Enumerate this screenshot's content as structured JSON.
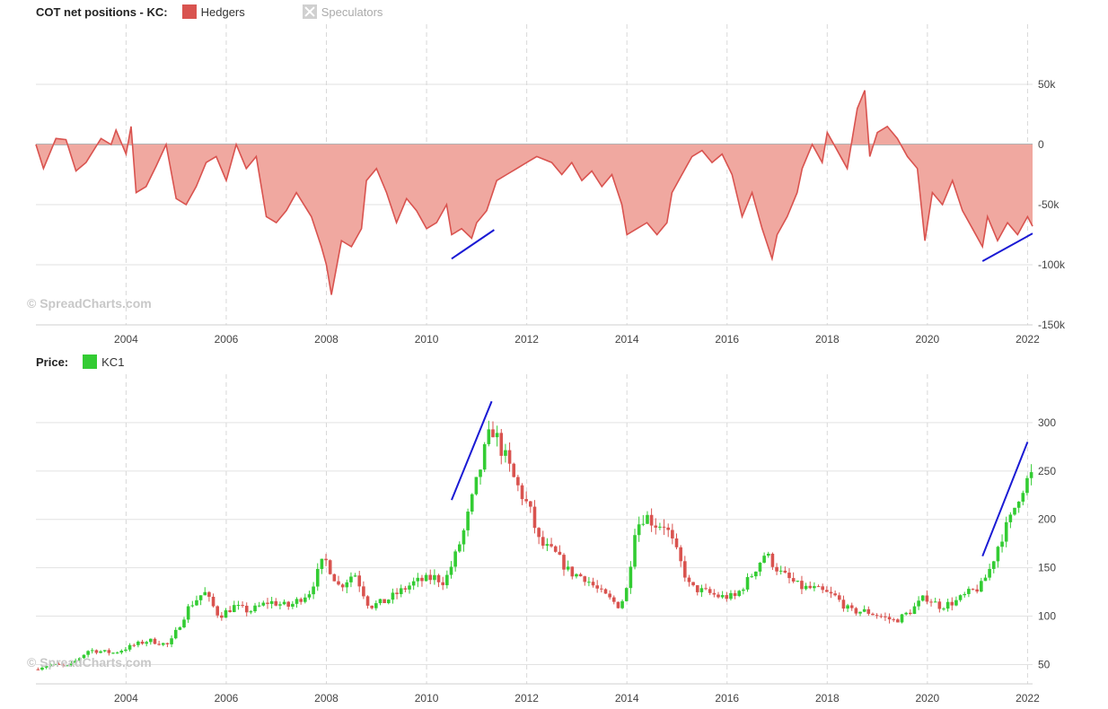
{
  "cot_panel": {
    "title": "COT net positions - KC:",
    "legend": [
      {
        "name": "Hedgers",
        "color": "#d9534f",
        "enabled": true
      },
      {
        "name": "Speculators",
        "color": "#cccccc",
        "enabled": false
      }
    ],
    "watermark": "© SpreadCharts.com"
  },
  "price_panel": {
    "title": "Price:",
    "legend": [
      {
        "name": "KC1",
        "color": "#33cc33",
        "enabled": true
      }
    ],
    "watermark": "© SpreadCharts.com"
  },
  "chart_data": [
    {
      "type": "area",
      "title": "COT net positions - KC:",
      "xlim": [
        2002.2,
        2022.1
      ],
      "ylim": [
        -150000,
        100000
      ],
      "x_ticks": [
        "2004",
        "2006",
        "2008",
        "2010",
        "2012",
        "2014",
        "2016",
        "2018",
        "2020",
        "2022"
      ],
      "y_ticks": [
        {
          "value": 50000,
          "label": "50k"
        },
        {
          "value": 0,
          "label": "0"
        },
        {
          "value": -50000,
          "label": "-50k"
        },
        {
          "value": -100000,
          "label": "-100k"
        },
        {
          "value": -150000,
          "label": "-150k"
        }
      ],
      "series": [
        {
          "name": "Hedgers",
          "color": "#d9534f",
          "fill": "#f0a8a0",
          "points": [
            [
              2002.2,
              0
            ],
            [
              2002.35,
              -20000
            ],
            [
              2002.6,
              5000
            ],
            [
              2002.8,
              4000
            ],
            [
              2003.0,
              -22000
            ],
            [
              2003.2,
              -15000
            ],
            [
              2003.5,
              5000
            ],
            [
              2003.7,
              0
            ],
            [
              2003.8,
              12000
            ],
            [
              2004.0,
              -8000
            ],
            [
              2004.1,
              15000
            ],
            [
              2004.2,
              -40000
            ],
            [
              2004.4,
              -35000
            ],
            [
              2004.6,
              -18000
            ],
            [
              2004.8,
              0
            ],
            [
              2005.0,
              -45000
            ],
            [
              2005.2,
              -50000
            ],
            [
              2005.4,
              -35000
            ],
            [
              2005.6,
              -15000
            ],
            [
              2005.8,
              -10000
            ],
            [
              2006.0,
              -30000
            ],
            [
              2006.2,
              0
            ],
            [
              2006.4,
              -20000
            ],
            [
              2006.6,
              -10000
            ],
            [
              2006.8,
              -60000
            ],
            [
              2007.0,
              -65000
            ],
            [
              2007.2,
              -55000
            ],
            [
              2007.4,
              -40000
            ],
            [
              2007.7,
              -60000
            ],
            [
              2007.9,
              -85000
            ],
            [
              2008.0,
              -100000
            ],
            [
              2008.1,
              -125000
            ],
            [
              2008.3,
              -80000
            ],
            [
              2008.5,
              -85000
            ],
            [
              2008.7,
              -70000
            ],
            [
              2008.8,
              -30000
            ],
            [
              2009.0,
              -20000
            ],
            [
              2009.2,
              -40000
            ],
            [
              2009.4,
              -65000
            ],
            [
              2009.6,
              -45000
            ],
            [
              2009.8,
              -55000
            ],
            [
              2010.0,
              -70000
            ],
            [
              2010.2,
              -65000
            ],
            [
              2010.4,
              -50000
            ],
            [
              2010.5,
              -75000
            ],
            [
              2010.7,
              -70000
            ],
            [
              2010.9,
              -78000
            ],
            [
              2011.0,
              -65000
            ],
            [
              2011.2,
              -55000
            ],
            [
              2011.4,
              -30000
            ],
            [
              2011.6,
              -25000
            ],
            [
              2011.8,
              -20000
            ],
            [
              2012.0,
              -15000
            ],
            [
              2012.2,
              -10000
            ],
            [
              2012.5,
              -15000
            ],
            [
              2012.7,
              -25000
            ],
            [
              2012.9,
              -15000
            ],
            [
              2013.1,
              -30000
            ],
            [
              2013.3,
              -22000
            ],
            [
              2013.5,
              -35000
            ],
            [
              2013.7,
              -25000
            ],
            [
              2013.9,
              -50000
            ],
            [
              2014.0,
              -75000
            ],
            [
              2014.2,
              -70000
            ],
            [
              2014.4,
              -65000
            ],
            [
              2014.6,
              -75000
            ],
            [
              2014.8,
              -65000
            ],
            [
              2014.9,
              -40000
            ],
            [
              2015.1,
              -25000
            ],
            [
              2015.3,
              -10000
            ],
            [
              2015.5,
              -5000
            ],
            [
              2015.7,
              -15000
            ],
            [
              2015.9,
              -8000
            ],
            [
              2016.1,
              -25000
            ],
            [
              2016.3,
              -60000
            ],
            [
              2016.5,
              -40000
            ],
            [
              2016.7,
              -70000
            ],
            [
              2016.9,
              -95000
            ],
            [
              2017.0,
              -75000
            ],
            [
              2017.2,
              -60000
            ],
            [
              2017.4,
              -40000
            ],
            [
              2017.5,
              -20000
            ],
            [
              2017.7,
              0
            ],
            [
              2017.9,
              -15000
            ],
            [
              2018.0,
              10000
            ],
            [
              2018.2,
              -5000
            ],
            [
              2018.4,
              -20000
            ],
            [
              2018.6,
              30000
            ],
            [
              2018.75,
              45000
            ],
            [
              2018.85,
              -10000
            ],
            [
              2019.0,
              10000
            ],
            [
              2019.2,
              15000
            ],
            [
              2019.4,
              5000
            ],
            [
              2019.6,
              -10000
            ],
            [
              2019.8,
              -20000
            ],
            [
              2019.95,
              -80000
            ],
            [
              2020.1,
              -40000
            ],
            [
              2020.3,
              -50000
            ],
            [
              2020.5,
              -30000
            ],
            [
              2020.7,
              -55000
            ],
            [
              2020.9,
              -70000
            ],
            [
              2021.1,
              -85000
            ],
            [
              2021.2,
              -60000
            ],
            [
              2021.4,
              -80000
            ],
            [
              2021.6,
              -65000
            ],
            [
              2021.8,
              -75000
            ],
            [
              2022.0,
              -60000
            ],
            [
              2022.1,
              -68000
            ]
          ]
        }
      ]
    },
    {
      "type": "candlestick",
      "title": "Price:",
      "xlim": [
        2002.2,
        2022.1
      ],
      "ylim": [
        30,
        350
      ],
      "x_ticks": [
        "2004",
        "2006",
        "2008",
        "2010",
        "2012",
        "2014",
        "2016",
        "2018",
        "2020",
        "2022"
      ],
      "y_ticks": [
        {
          "value": 300,
          "label": "300"
        },
        {
          "value": 250,
          "label": "250"
        },
        {
          "value": 200,
          "label": "200"
        },
        {
          "value": 150,
          "label": "150"
        },
        {
          "value": 100,
          "label": "100"
        },
        {
          "value": 50,
          "label": "50"
        }
      ],
      "up_color": "#33cc33",
      "down_color": "#d9534f",
      "series": [
        {
          "name": "KC1",
          "close_trend": [
            [
              2002.2,
              45
            ],
            [
              2002.5,
              50
            ],
            [
              2002.9,
              48
            ],
            [
              2003.3,
              65
            ],
            [
              2003.8,
              62
            ],
            [
              2004.2,
              70
            ],
            [
              2004.5,
              75
            ],
            [
              2004.9,
              70
            ],
            [
              2005.3,
              110
            ],
            [
              2005.6,
              125
            ],
            [
              2005.9,
              100
            ],
            [
              2006.2,
              110
            ],
            [
              2006.5,
              105
            ],
            [
              2006.9,
              115
            ],
            [
              2007.3,
              110
            ],
            [
              2007.7,
              125
            ],
            [
              2008.0,
              160
            ],
            [
              2008.3,
              130
            ],
            [
              2008.6,
              145
            ],
            [
              2008.9,
              110
            ],
            [
              2009.2,
              115
            ],
            [
              2009.5,
              125
            ],
            [
              2009.8,
              135
            ],
            [
              2010.2,
              140
            ],
            [
              2010.4,
              135
            ],
            [
              2010.6,
              160
            ],
            [
              2010.8,
              190
            ],
            [
              2011.0,
              230
            ],
            [
              2011.2,
              270
            ],
            [
              2011.35,
              295
            ],
            [
              2011.6,
              265
            ],
            [
              2011.8,
              240
            ],
            [
              2012.1,
              210
            ],
            [
              2012.3,
              175
            ],
            [
              2012.6,
              165
            ],
            [
              2012.9,
              145
            ],
            [
              2013.2,
              140
            ],
            [
              2013.5,
              125
            ],
            [
              2013.9,
              110
            ],
            [
              2014.05,
              130
            ],
            [
              2014.2,
              190
            ],
            [
              2014.4,
              205
            ],
            [
              2014.6,
              195
            ],
            [
              2014.8,
              195
            ],
            [
              2015.0,
              170
            ],
            [
              2015.3,
              130
            ],
            [
              2015.6,
              125
            ],
            [
              2015.9,
              120
            ],
            [
              2016.2,
              120
            ],
            [
              2016.5,
              140
            ],
            [
              2016.8,
              165
            ],
            [
              2017.1,
              145
            ],
            [
              2017.5,
              130
            ],
            [
              2017.8,
              128
            ],
            [
              2018.2,
              120
            ],
            [
              2018.5,
              105
            ],
            [
              2018.8,
              105
            ],
            [
              2019.1,
              100
            ],
            [
              2019.4,
              95
            ],
            [
              2019.7,
              105
            ],
            [
              2020.0,
              120
            ],
            [
              2020.3,
              110
            ],
            [
              2020.6,
              115
            ],
            [
              2020.9,
              125
            ],
            [
              2021.1,
              130
            ],
            [
              2021.3,
              150
            ],
            [
              2021.5,
              180
            ],
            [
              2021.7,
              200
            ],
            [
              2021.9,
              230
            ],
            [
              2022.1,
              245
            ]
          ]
        }
      ]
    }
  ]
}
